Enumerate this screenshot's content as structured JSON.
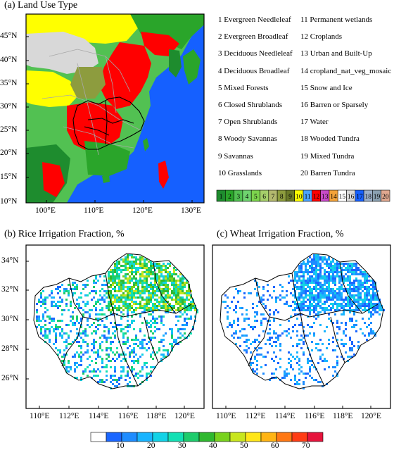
{
  "panels": {
    "a": {
      "title": "(a) Land Use Type",
      "lat_ticks": [
        "45°N",
        "40°N",
        "35°N",
        "30°N",
        "25°N",
        "20°N",
        "15°N",
        "10°N"
      ],
      "lon_ticks": [
        "100°E",
        "110°E",
        "120°E",
        "130°E"
      ]
    },
    "b": {
      "title": "(b) Rice Irrigation Fraction, %",
      "lat_ticks": [
        "34°N",
        "32°N",
        "30°N",
        "28°N",
        "26°N"
      ],
      "lon_ticks": [
        "110°E",
        "112°E",
        "114°E",
        "116°E",
        "118°E",
        "120°E"
      ]
    },
    "c": {
      "title": "(c) Wheat Irrigation Fraction, %",
      "lon_ticks": [
        "110°E",
        "112°E",
        "114°E",
        "116°E",
        "118°E",
        "120°E"
      ]
    }
  },
  "land_use_legend": [
    "1 Evergreen Needleleaf",
    "2 Evergreen Broadleaf",
    "3 Deciduous Needleleaf",
    "4 Deciduous Broadleaf",
    "5 Mixed Forests",
    "6 Closed Shrublands",
    "7 Open Shrublands",
    "8 Woody Savannas",
    "9 Savannas",
    "10 Grasslands",
    "11 Permanent wetlands",
    "12 Croplands",
    "13 Urban and Built-Up",
    "14 cropland_nat_veg_mosaic",
    "15 Snow and Ice",
    "16 Barren or Sparsely",
    "17 Water",
    "18 Wooded Tundra",
    "19 Mixed Tundra",
    "20 Barren Tundra"
  ],
  "land_use_colorbar": {
    "labels": [
      "1",
      "2",
      "3",
      "4",
      "5",
      "6",
      "7",
      "8",
      "9",
      "10",
      "11",
      "12",
      "13",
      "14",
      "15",
      "16",
      "17",
      "18",
      "19",
      "20"
    ],
    "colors": [
      "#1e8c2e",
      "#2aa52a",
      "#52c152",
      "#6fd36f",
      "#7cd44c",
      "#a6cf6a",
      "#b3b86e",
      "#8d9c3e",
      "#6b7a28",
      "#ffff00",
      "#4aa3ff",
      "#ff0000",
      "#c84bc8",
      "#f3a33a",
      "#ffffff",
      "#d8d8d8",
      "#1560ff",
      "#9cb0c8",
      "#8aa0b0",
      "#e0a890"
    ]
  },
  "irrigation_colorbar": {
    "labels": [
      "10",
      "20",
      "30",
      "40",
      "50",
      "60",
      "70"
    ],
    "colors": [
      "#ffffff",
      "#1a66ff",
      "#1e8cff",
      "#19b4ff",
      "#12d2e6",
      "#13e0b4",
      "#1ecc6c",
      "#2fb82f",
      "#78d21e",
      "#c8e61e",
      "#ffe619",
      "#ffb414",
      "#ff7814",
      "#ff3c14",
      "#e6143c"
    ]
  }
}
